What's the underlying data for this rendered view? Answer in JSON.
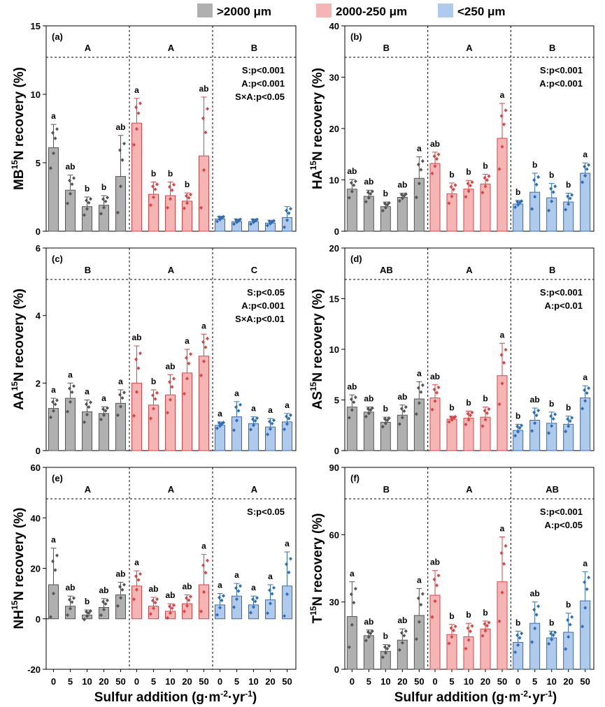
{
  "legend": [
    {
      "label": ">2000 μm",
      "color": "#b0b0b0",
      "stroke": "#555555"
    },
    {
      "label": "2000-250 μm",
      "color": "#f5b5b5",
      "stroke": "#d94545"
    },
    {
      "label": "<250 μm",
      "color": "#aecbee",
      "stroke": "#2f6db5"
    }
  ],
  "xlabel_prefix": "Sulfur addition (g·m",
  "xlabel_sup1": "-2",
  "xlabel_mid": "·yr",
  "xlabel_sup2": "-1",
  "xlabel_suffix": ")",
  "chart_data": [
    {
      "type": "bar",
      "panel": "(a)",
      "ylabel_pre": "MB",
      "ylabel_post": "N recovery (%)",
      "ylim": [
        0,
        15
      ],
      "yticks": [
        0,
        5,
        10,
        15
      ],
      "categories": [
        "0",
        "5",
        "10",
        "20",
        "50"
      ],
      "groups": [
        "A",
        "A",
        "B"
      ],
      "stats": [
        "S:p<0.001",
        "A:p<0.001",
        "S×A:p<0.05"
      ],
      "series": [
        {
          "values": [
            6.1,
            3.0,
            1.8,
            1.9,
            4.0
          ],
          "err": [
            1.7,
            1.1,
            0.7,
            0.7,
            3.0
          ],
          "letters": [
            "a",
            "ab",
            "b",
            "b",
            "ab"
          ]
        },
        {
          "values": [
            7.9,
            2.7,
            2.6,
            2.2,
            5.5
          ],
          "err": [
            1.8,
            0.9,
            1.0,
            0.6,
            4.3
          ],
          "letters": [
            "a",
            "b",
            "b",
            "b",
            "ab"
          ]
        },
        {
          "values": [
            0.9,
            0.7,
            0.7,
            0.6,
            1.0
          ],
          "err": [
            0.2,
            0.2,
            0.2,
            0.2,
            0.8
          ],
          "letters": [
            "",
            "",
            "",
            "",
            ""
          ]
        }
      ]
    },
    {
      "type": "bar",
      "panel": "(b)",
      "ylabel_pre": "HA",
      "ylabel_post": "N recovery (%)",
      "ylim": [
        0,
        40
      ],
      "yticks": [
        0,
        10,
        20,
        30,
        40
      ],
      "categories": [
        "0",
        "5",
        "10",
        "20",
        "50"
      ],
      "groups": [
        "B",
        "A",
        "B"
      ],
      "stats": [
        "S:p<0.001",
        "A:p<0.001"
      ],
      "series": [
        {
          "values": [
            8.2,
            6.8,
            4.8,
            6.6,
            10.3
          ],
          "err": [
            1.9,
            1.2,
            0.9,
            0.8,
            4.2
          ],
          "letters": [
            "ab",
            "ab",
            "b",
            "ab",
            "a"
          ]
        },
        {
          "values": [
            13.2,
            7.3,
            8.2,
            9.2,
            18.1
          ],
          "err": [
            2.2,
            2.1,
            1.7,
            1.9,
            6.8
          ],
          "letters": [
            "ab",
            "b",
            "b",
            "b",
            "a"
          ]
        },
        {
          "values": [
            5.3,
            7.6,
            6.5,
            5.7,
            11.3
          ],
          "err": [
            0.7,
            3.7,
            2.8,
            1.7,
            2.0
          ],
          "letters": [
            "b",
            "b",
            "b",
            "b",
            "a"
          ]
        }
      ]
    },
    {
      "type": "bar",
      "panel": "(c)",
      "ylabel_pre": "AA",
      "ylabel_post": "N recovery (%)",
      "ylim": [
        0,
        6
      ],
      "yticks": [
        0,
        2,
        4,
        6
      ],
      "categories": [
        "0",
        "5",
        "10",
        "20",
        "50"
      ],
      "groups": [
        "B",
        "A",
        "C"
      ],
      "stats": [
        "S:p<0.05",
        "A:p<0.001",
        "S×A:p<0.01"
      ],
      "series": [
        {
          "values": [
            1.25,
            1.55,
            1.15,
            1.1,
            1.4
          ],
          "err": [
            0.3,
            0.45,
            0.35,
            0.2,
            0.4
          ],
          "letters": [
            "a",
            "a",
            "a",
            "a",
            "a"
          ]
        },
        {
          "values": [
            2.0,
            1.35,
            1.65,
            2.3,
            2.8
          ],
          "err": [
            1.1,
            0.45,
            0.6,
            0.7,
            0.65
          ],
          "letters": [
            "ab",
            "b",
            "ab",
            "a",
            "a"
          ]
        },
        {
          "values": [
            0.75,
            1.0,
            0.8,
            0.7,
            0.85
          ],
          "err": [
            0.1,
            0.45,
            0.2,
            0.25,
            0.25
          ],
          "letters": [
            "a",
            "a",
            "a",
            "a",
            "a"
          ]
        }
      ]
    },
    {
      "type": "bar",
      "panel": "(d)",
      "ylabel_pre": "AS",
      "ylabel_post": "N recovery (%)",
      "ylim": [
        0,
        20
      ],
      "yticks": [
        0,
        5,
        10,
        15,
        20
      ],
      "categories": [
        "0",
        "5",
        "10",
        "20",
        "50"
      ],
      "groups": [
        "AB",
        "A",
        "B"
      ],
      "stats": [
        "S:p<0.001",
        "A:p<0.01"
      ],
      "series": [
        {
          "values": [
            4.3,
            3.8,
            2.8,
            3.5,
            5.1
          ],
          "err": [
            1.2,
            0.5,
            0.5,
            1.0,
            1.7
          ],
          "letters": [
            "ab",
            "ab",
            "b",
            "ab",
            "a"
          ]
        },
        {
          "values": [
            5.2,
            3.1,
            3.2,
            3.3,
            7.4
          ],
          "err": [
            1.3,
            0.3,
            0.7,
            1.0,
            3.2
          ],
          "letters": [
            "ab",
            "b",
            "b",
            "b",
            "a"
          ]
        },
        {
          "values": [
            2.0,
            3.0,
            2.7,
            2.6,
            5.2
          ],
          "err": [
            0.6,
            1.2,
            1.1,
            0.8,
            1.2
          ],
          "letters": [
            "b",
            "ab",
            "b",
            "b",
            "a"
          ]
        }
      ]
    },
    {
      "type": "bar",
      "panel": "(e)",
      "ylabel_pre": "NH",
      "ylabel_post": "N recovery (%)",
      "ylim": [
        -20,
        60
      ],
      "yticks": [
        -20,
        0,
        20,
        40,
        60
      ],
      "categories": [
        "0",
        "5",
        "10",
        "20",
        "50"
      ],
      "groups": [
        "A",
        "A",
        "A"
      ],
      "stats": [
        "S:p<0.05"
      ],
      "series": [
        {
          "values": [
            13.5,
            5.0,
            1.5,
            4.5,
            9.5
          ],
          "err": [
            14.5,
            4.0,
            2.0,
            3.5,
            5.0
          ],
          "letters": [
            "a",
            "ab",
            "b",
            "ab",
            "ab"
          ]
        },
        {
          "values": [
            13.0,
            5.0,
            3.0,
            6.0,
            13.5
          ],
          "err": [
            6.0,
            3.5,
            3.0,
            3.5,
            12.0
          ],
          "letters": [
            "a",
            "ab",
            "ab",
            "ab",
            "a"
          ]
        },
        {
          "values": [
            5.5,
            9.0,
            5.5,
            7.5,
            13.0
          ],
          "err": [
            4.5,
            5.0,
            3.5,
            6.0,
            13.5
          ],
          "letters": [
            "a",
            "a",
            "a",
            "a",
            "a"
          ]
        }
      ]
    },
    {
      "type": "bar",
      "panel": "(f)",
      "ylabel_pre": "T",
      "ylabel_post": "N recovery (%)",
      "ylim": [
        0,
        90
      ],
      "yticks": [
        0,
        30,
        60,
        90
      ],
      "categories": [
        "0",
        "5",
        "10",
        "20",
        "50"
      ],
      "groups": [
        "B",
        "A",
        "AB"
      ],
      "stats": [
        "S:p<0.001",
        "A:p<0.05"
      ],
      "series": [
        {
          "values": [
            23.5,
            15.0,
            8.0,
            13.0,
            24.0
          ],
          "err": [
            15.5,
            2.5,
            3.0,
            5.0,
            12.0
          ],
          "letters": [
            "a",
            "ab",
            "b",
            "ab",
            "a"
          ]
        },
        {
          "values": [
            33.0,
            15.5,
            14.5,
            18.0,
            39.0
          ],
          "err": [
            11.0,
            4.5,
            6.0,
            3.5,
            20.0
          ],
          "letters": [
            "ab",
            "b",
            "b",
            "b",
            "a"
          ]
        },
        {
          "values": [
            12.0,
            20.5,
            14.0,
            16.5,
            30.5
          ],
          "err": [
            5.0,
            9.5,
            3.0,
            8.5,
            13.0
          ],
          "letters": [
            "b",
            "ab",
            "b",
            "b",
            "a"
          ]
        }
      ]
    }
  ]
}
